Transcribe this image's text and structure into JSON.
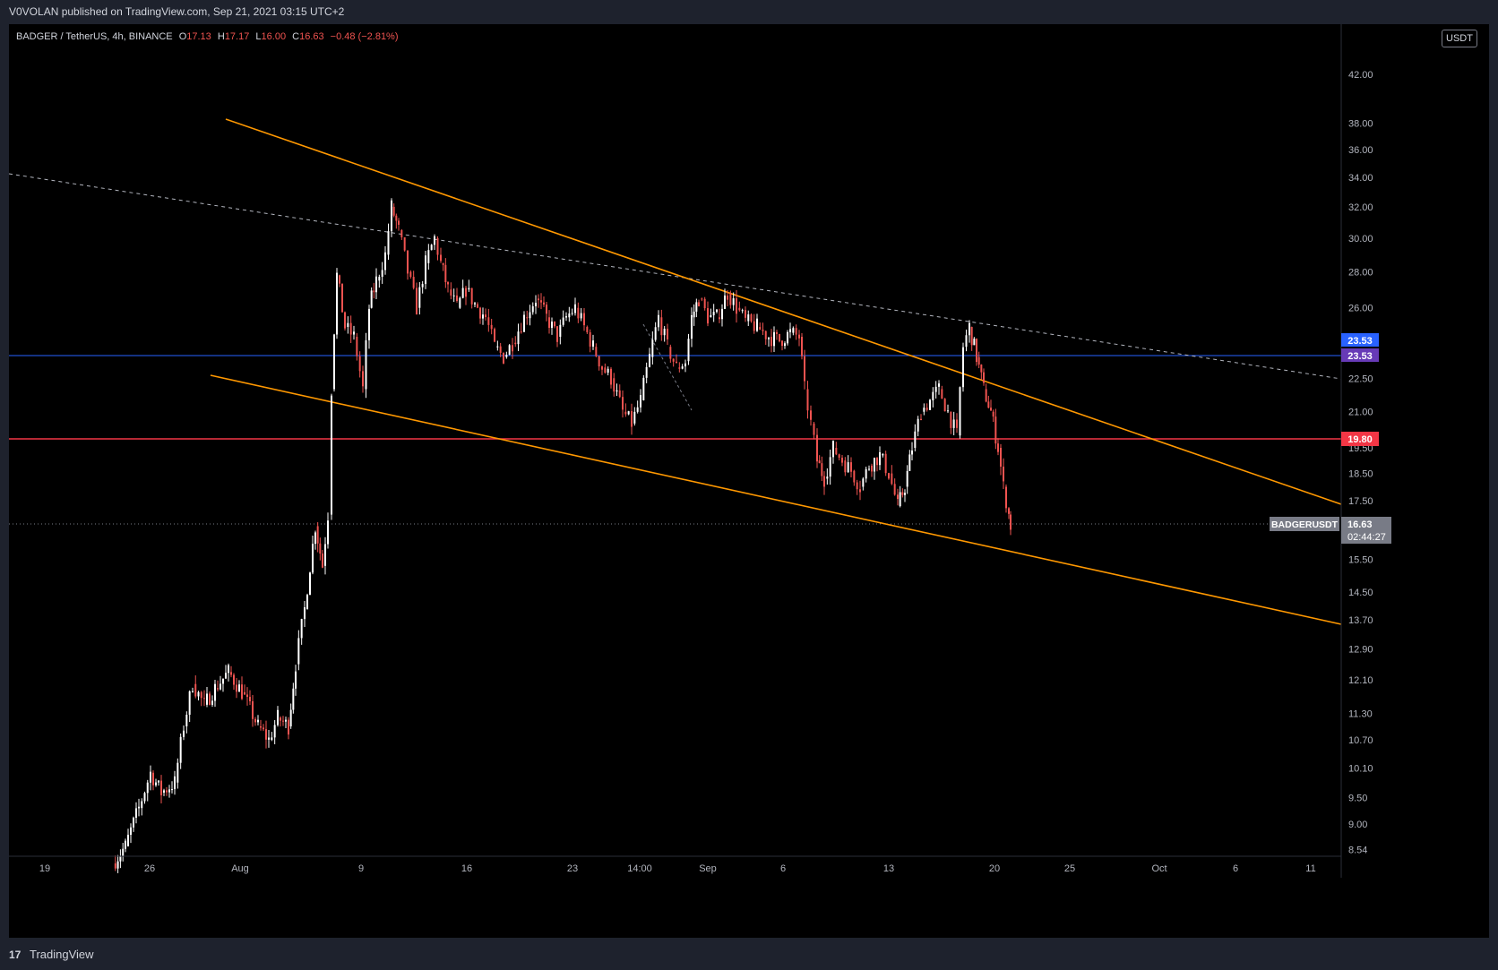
{
  "header": {
    "published_text": "V0VOLAN published on TradingView.com, Sep 21, 2021 03:15 UTC+2"
  },
  "footer": {
    "brand": "TradingView"
  },
  "colors": {
    "up": "#ffffff",
    "down": "#ef5350",
    "trendline": "#ff9800",
    "support_blue": "#2962ff",
    "resistance_red": "#f23645",
    "dashed": "#b2b5be"
  },
  "chart_data": {
    "type": "candlestick",
    "symbol_line": "BADGER / TetherUS, 4h, BINANCE",
    "ohlc": {
      "O": "17.13",
      "H": "17.17",
      "L": "16.00",
      "C": "16.63",
      "change": "−0.48 (−2.81%)"
    },
    "y_unit": "USDT",
    "y_scale": "log",
    "y_ticks": [
      "42.00",
      "38.00",
      "36.00",
      "34.00",
      "32.00",
      "30.00",
      "28.00",
      "26.00",
      "22.50",
      "21.00",
      "19.50",
      "18.50",
      "17.50",
      "15.50",
      "14.50",
      "13.70",
      "12.90",
      "12.10",
      "11.30",
      "10.70",
      "10.10",
      "9.50",
      "9.00",
      "8.54"
    ],
    "x_ticks": [
      "19",
      "26",
      "Aug",
      "9",
      "16",
      "23",
      "14:00",
      "Sep",
      "6",
      "13",
      "20",
      "25",
      "Oct",
      "6",
      "11"
    ],
    "price_labels": {
      "blue_line_a": "23.53",
      "blue_line_b": "23.53",
      "red_line": "19.80",
      "symbol": "BADGERUSDT",
      "last": "16.63",
      "countdown": "02:44:27"
    },
    "horizontal_levels": {
      "blue": 23.53,
      "red": 19.8,
      "last": 16.63
    }
  }
}
